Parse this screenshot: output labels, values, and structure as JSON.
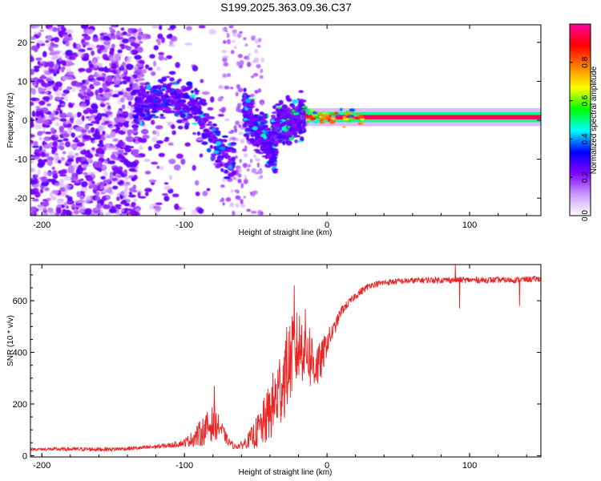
{
  "title": "S199.2025.363.09.36.C37",
  "chart_data": [
    {
      "type": "heatmap",
      "title": "S199.2025.363.09.36.C37",
      "xlabel": "Height of straight line (km)",
      "ylabel": "Frequency (Hz)",
      "xlim": [
        -208,
        150
      ],
      "ylim": [
        -24.5,
        24.5
      ],
      "xticks": [
        -200,
        -100,
        0,
        100
      ],
      "yticks": [
        -20,
        -10,
        0,
        10,
        20
      ],
      "colorbar": {
        "label": "Normalized spectral amplitude",
        "range": [
          0.0,
          1.0
        ],
        "ticks": [
          0.0,
          0.2,
          0.4,
          0.6,
          0.8
        ],
        "tick_labels": [
          "0.0",
          "0.2",
          "0.4",
          "0.6",
          "0.8"
        ],
        "colors": [
          "#ffffff",
          "#cc99ff",
          "#7f00ff",
          "#0000ff",
          "#00ffff",
          "#00ff00",
          "#ffff00",
          "#ff8000",
          "#ff0000",
          "#ff00a0"
        ]
      },
      "features": [
        {
          "name": "broadband noise",
          "x_range": [
            -208,
            -130
          ],
          "freq_range": [
            -24.5,
            24.5
          ],
          "amplitude": 0.05
        },
        {
          "name": "descending chirp 1",
          "x": [
            -135,
            -110,
            -90,
            -80,
            -72,
            -65
          ],
          "freq": [
            3,
            6,
            2,
            -5,
            -9,
            -11
          ],
          "amplitude": 0.3
        },
        {
          "name": "descending chirp 2",
          "x": [
            -58,
            -50,
            -44,
            -40,
            -36
          ],
          "freq": [
            3,
            -2,
            -4,
            -7,
            -9
          ],
          "amplitude": 0.35
        },
        {
          "name": "rising branch",
          "x": [
            -38,
            -30,
            -22,
            -15
          ],
          "freq": [
            -2,
            -1,
            0,
            1.5
          ],
          "amplitude": 0.4
        },
        {
          "name": "stable carrier",
          "x_range": [
            -15,
            150
          ],
          "freq": 0.8,
          "amplitude": 0.95
        }
      ]
    },
    {
      "type": "line",
      "xlabel": "Height of straight line (km)",
      "ylabel": "SNR (10 * v/v)",
      "xlim": [
        -208,
        150
      ],
      "ylim": [
        -5,
        740
      ],
      "xticks": [
        -200,
        -100,
        0,
        100
      ],
      "yticks": [
        0,
        200,
        400,
        600
      ],
      "series": [
        {
          "name": "SNR",
          "color": "#ee2222",
          "x": [
            -208,
            -180,
            -150,
            -130,
            -110,
            -100,
            -95,
            -90,
            -85,
            -80,
            -75,
            -70,
            -65,
            -60,
            -55,
            -50,
            -45,
            -40,
            -35,
            -30,
            -25,
            -20,
            -15,
            -10,
            -5,
            0,
            5,
            10,
            15,
            20,
            25,
            30,
            40,
            50,
            70,
            90,
            110,
            130,
            150
          ],
          "values": [
            25,
            25,
            25,
            30,
            40,
            50,
            65,
            80,
            105,
            125,
            110,
            60,
            35,
            40,
            60,
            85,
            120,
            170,
            230,
            310,
            380,
            420,
            430,
            360,
            350,
            440,
            490,
            560,
            590,
            620,
            640,
            660,
            670,
            675,
            680,
            680,
            680,
            680,
            685
          ],
          "noise": [
            5,
            8,
            8,
            8,
            10,
            15,
            30,
            50,
            60,
            70,
            40,
            20,
            10,
            15,
            30,
            60,
            90,
            120,
            150,
            170,
            160,
            150,
            140,
            130,
            80,
            50,
            30,
            20,
            15,
            15,
            15,
            12,
            12,
            12,
            12,
            12,
            12,
            12,
            12
          ],
          "spikes": [
            {
              "x": -23,
              "y": 660
            },
            {
              "x": -79,
              "y": 270
            },
            {
              "x": 90,
              "y": 740
            },
            {
              "x": 93,
              "y": 570
            },
            {
              "x": 135,
              "y": 580
            }
          ]
        }
      ]
    }
  ]
}
